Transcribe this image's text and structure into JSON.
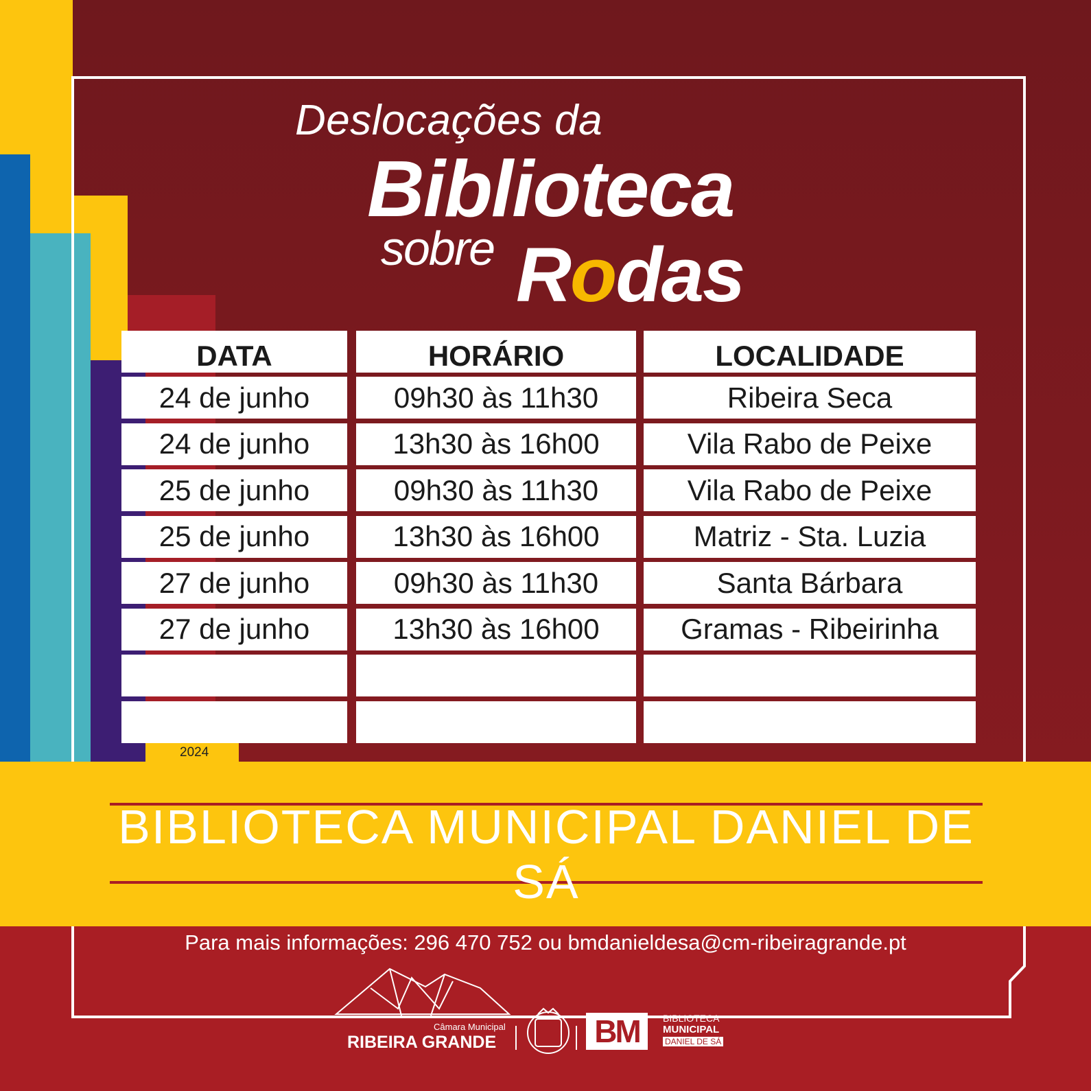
{
  "colors": {
    "maroon": "#7A1A1F",
    "red": "#A91E24",
    "yellow": "#FDC50E",
    "accent_yellow": "#F7B800",
    "white": "#FFFFFF"
  },
  "title": {
    "line1": "Deslocações da",
    "line2": "Biblioteca",
    "sobre": "sobre",
    "rodas_r": "R",
    "rodas_o": "o",
    "rodas_rest": "das"
  },
  "table": {
    "headers": [
      "DATA",
      "HORÁRIO",
      "LOCALIDADE"
    ],
    "rows": [
      [
        "24 de junho",
        "09h30 às 11h30",
        "Ribeira Seca"
      ],
      [
        "24 de junho",
        "13h30 às 16h00",
        "Vila Rabo de Peixe"
      ],
      [
        "25 de junho",
        "09h30 às 11h30",
        "Vila Rabo de Peixe"
      ],
      [
        "25 de junho",
        "13h30 às 16h00",
        "Matriz - Sta. Luzia"
      ],
      [
        "27 de junho",
        "09h30 às 11h30",
        "Santa Bárbara"
      ],
      [
        "27 de junho",
        "13h30 às 16h00",
        "Gramas - Ribeirinha"
      ],
      [
        "",
        "",
        ""
      ],
      [
        "",
        "",
        ""
      ]
    ]
  },
  "year": "2024",
  "footer": {
    "library_name": "BIBLIOTECA MUNICIPAL DANIEL DE SÁ",
    "info": "Para mais informações: 296 470 752 ou bmdanieldesa@cm-ribeiragrande.pt"
  },
  "logos": {
    "camara_small": "Câmara Municipal",
    "camara_big": "RIBEIRA GRANDE",
    "crest_text": "RIBEIRA GRANDE",
    "bm_mark": "BM",
    "bm_line1": "BIBLIOTECA",
    "bm_line2": "MUNICIPAL",
    "bm_line3": "DANIEL DE SÁ",
    "icons": [
      "origami-mountain-icon",
      "municipal-crest-icon",
      "bm-logo-icon"
    ]
  }
}
